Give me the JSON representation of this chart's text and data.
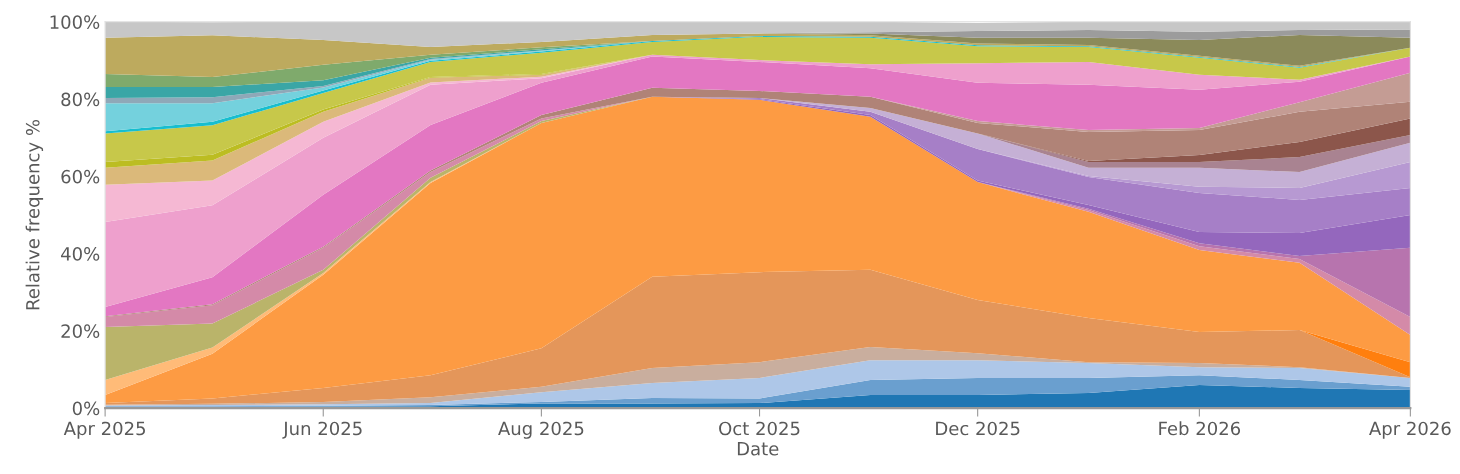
{
  "chart_data": {
    "type": "area",
    "stacked": true,
    "xlabel": "Date",
    "ylabel": "Relative frequency %",
    "x": [
      "2025-04",
      "2025-05",
      "2025-06",
      "2025-07",
      "2025-08",
      "2025-09",
      "2025-10",
      "2025-11",
      "2025-12",
      "2026-01",
      "2026-02",
      "2026-03",
      "2026-04"
    ],
    "xlim": [
      "2025-04",
      "2026-04"
    ],
    "xticks": [
      {
        "value": "2025-04",
        "label": "Apr 2025"
      },
      {
        "value": "2025-06",
        "label": "Jun 2025"
      },
      {
        "value": "2025-08",
        "label": "Aug 2025"
      },
      {
        "value": "2025-10",
        "label": "Oct 2025"
      },
      {
        "value": "2025-12",
        "label": "Dec 2025"
      },
      {
        "value": "2026-02",
        "label": "Feb 2026"
      },
      {
        "value": "2026-04",
        "label": "Apr 2026"
      }
    ],
    "ylim": [
      0,
      100
    ],
    "yticks": [
      {
        "value": 0,
        "label": "0%"
      },
      {
        "value": 20,
        "label": "20%"
      },
      {
        "value": 40,
        "label": "40%"
      },
      {
        "value": 60,
        "label": "60%"
      },
      {
        "value": 80,
        "label": "80%"
      },
      {
        "value": 100,
        "label": "100%"
      }
    ],
    "series": [
      {
        "color": "#1f77b4",
        "values": [
          0.3,
          0.3,
          0.4,
          0.5,
          1.2,
          1.2,
          1.3,
          3.4,
          3.4,
          3.9,
          6,
          5.2,
          4.7
        ]
      },
      {
        "color": "#6a9fcf",
        "values": [
          0.2,
          0.2,
          0.2,
          0.3,
          0.4,
          1.4,
          1.2,
          3.9,
          4.4,
          3.9,
          2.5,
          2.1,
          0.8
        ]
      },
      {
        "color": "#aec7e8",
        "values": [
          0.2,
          0.3,
          0.4,
          0.5,
          2.5,
          3.9,
          5.3,
          5.1,
          4.6,
          3.9,
          2.1,
          3.1,
          2.3
        ]
      },
      {
        "color": "#c9ae9e",
        "values": [
          0.2,
          0.3,
          0.6,
          1.5,
          1.4,
          3.9,
          4.1,
          3.4,
          1.8,
          0.2,
          1.1,
          0.2,
          0
        ]
      },
      {
        "color": "#e4965a",
        "values": [
          0.4,
          1.4,
          3.6,
          5.7,
          10,
          23.6,
          23.3,
          20,
          13.8,
          11.4,
          8,
          9.6,
          0.2
        ]
      },
      {
        "color": "#ff7f0e",
        "values": [
          null,
          null,
          null,
          null,
          null,
          null,
          null,
          null,
          null,
          null,
          null,
          0,
          3.9
        ]
      },
      {
        "color": "#fd9b43",
        "values": [
          2.1,
          11.6,
          29.3,
          49.8,
          58.3,
          46.6,
          44.6,
          39.6,
          30.5,
          27.5,
          21.2,
          17.4,
          7
        ]
      },
      {
        "color": "#ffbb78",
        "values": [
          3.9,
          1.6,
          0.5,
          0.2,
          0,
          null,
          null,
          null,
          null,
          null,
          null,
          null,
          null
        ]
      },
      {
        "color": "#bab46a",
        "values": [
          13.7,
          6.2,
          0.8,
          1.1,
          0.5,
          0,
          null,
          null,
          null,
          null,
          null,
          null,
          null
        ]
      },
      {
        "color": "#d48aa8",
        "values": [
          2.6,
          4.7,
          5.7,
          1.5,
          0.7,
          0,
          null,
          null,
          0,
          0.5,
          1,
          1,
          4.7
        ]
      },
      {
        "color": "#b774ae",
        "values": [
          null,
          null,
          null,
          null,
          null,
          null,
          null,
          null,
          0,
          0.3,
          0.8,
          0.8,
          17.9
        ]
      },
      {
        "color": "#9467bd",
        "values": [
          null,
          null,
          null,
          null,
          null,
          0,
          0.2,
          0.5,
          0.4,
          1,
          2.9,
          5.9,
          8.5
        ]
      },
      {
        "color": "#a67fc7",
        "values": [
          null,
          null,
          null,
          null,
          null,
          0,
          0.3,
          0.8,
          8.2,
          7.2,
          10.1,
          8.6,
          7
        ]
      },
      {
        "color": "#b799d2",
        "values": [
          null,
          null,
          null,
          null,
          null,
          null,
          null,
          null,
          0,
          0.3,
          1.6,
          3.1,
          6.7
        ]
      },
      {
        "color": "#c5b0d5",
        "values": [
          null,
          null,
          null,
          null,
          null,
          null,
          0,
          1,
          4,
          2.1,
          4.9,
          4.1,
          5
        ]
      },
      {
        "color": "#a98391",
        "values": [
          null,
          null,
          null,
          null,
          null,
          null,
          null,
          null,
          0,
          1.5,
          1.5,
          3.9,
          2
        ]
      },
      {
        "color": "#8c564b",
        "values": [
          null,
          null,
          null,
          null,
          null,
          null,
          null,
          null,
          0,
          0.3,
          1.8,
          3.9,
          4.3
        ]
      },
      {
        "color": "#b08377",
        "values": [
          0.2,
          0.3,
          0.3,
          0.4,
          0.9,
          2.3,
          1.8,
          2.9,
          2.7,
          7.5,
          6.5,
          7.8,
          4.3
        ]
      },
      {
        "color": "#c49c94",
        "values": [
          null,
          null,
          null,
          null,
          null,
          null,
          null,
          0,
          0.5,
          0.5,
          0.5,
          2.5,
          7.5
        ]
      },
      {
        "color": "#e377c2",
        "values": [
          2.4,
          7,
          13.4,
          11.8,
          8.3,
          8.1,
          7.5,
          7.4,
          9.9,
          11.7,
          9.9,
          5.3,
          4.2
        ]
      },
      {
        "color": "#eea0cd",
        "values": [
          22,
          18.6,
          14.8,
          10.4,
          1.2,
          0.5,
          0.5,
          1,
          5.1,
          5.9,
          3.9,
          0.5,
          0
        ]
      },
      {
        "color": "#f5b8d3",
        "values": [
          9.6,
          6.4,
          4.1,
          0.6,
          0.4,
          0,
          null,
          null,
          null,
          null,
          null,
          null,
          null
        ]
      },
      {
        "color": "#dbb97a",
        "values": [
          4.4,
          5.2,
          2.6,
          1.2,
          0.5,
          0,
          null,
          null,
          null,
          null,
          null,
          null,
          null
        ]
      },
      {
        "color": "#bcbd22",
        "values": [
          1.5,
          1.5,
          0.6,
          0.2,
          0.2,
          0,
          null,
          null,
          null,
          null,
          null,
          null,
          null
        ]
      },
      {
        "color": "#c7c84a",
        "values": [
          7.4,
          7.6,
          4.3,
          3.9,
          5.5,
          3.3,
          6,
          6.9,
          4.4,
          3.9,
          4.4,
          3.1,
          2.3
        ]
      },
      {
        "color": "#17becf",
        "values": [
          0.6,
          0.9,
          0.6,
          0.3,
          0.3,
          0.2,
          0.2,
          0.2,
          0.2,
          0.2,
          0.2,
          0.2,
          0
        ]
      },
      {
        "color": "#74d1dd",
        "values": [
          7.2,
          4.8,
          0.8,
          0.3,
          0.2,
          0,
          null,
          null,
          null,
          null,
          null,
          null,
          null
        ]
      },
      {
        "color": "#8fa8b8",
        "values": [
          1.4,
          1.6,
          0.4,
          0.2,
          0.1,
          0,
          null,
          null,
          null,
          null,
          null,
          null,
          null
        ]
      },
      {
        "color": "#3aa6a6",
        "values": [
          2.8,
          2.6,
          1.5,
          0.3,
          0.3,
          0,
          null,
          null,
          null,
          null,
          null,
          null,
          null
        ]
      },
      {
        "color": "#7faa6c",
        "values": [
          3.4,
          2.6,
          4,
          0.8,
          0.5,
          0,
          null,
          null,
          null,
          null,
          null,
          null,
          null
        ]
      },
      {
        "color": "#bdaa5e",
        "values": [
          9.4,
          10.8,
          6.4,
          2,
          1.4,
          1.6,
          0.7,
          0.4,
          0.5,
          0.3,
          0.3,
          0.3,
          0
        ]
      },
      {
        "color": "#8b8a5a",
        "values": [
          null,
          null,
          null,
          null,
          null,
          null,
          0,
          0.5,
          1.5,
          1.9,
          4.1,
          8,
          2.6
        ]
      },
      {
        "color": "#9c9c9c",
        "values": [
          null,
          null,
          null,
          null,
          null,
          null,
          0,
          0.3,
          1.7,
          2,
          2.1,
          1.3,
          2.1
        ]
      },
      {
        "color": "#c7c7c7",
        "values": [
          4.1,
          3.4,
          4.7,
          6.5,
          5.2,
          3.4,
          3,
          2.7,
          2.1,
          2.1,
          2.6,
          2.1,
          2
        ]
      }
    ]
  }
}
